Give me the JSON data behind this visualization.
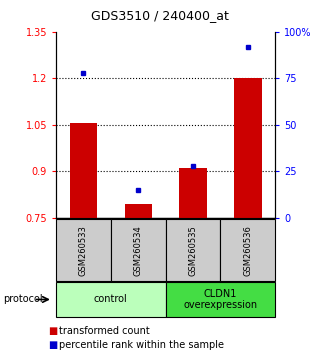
{
  "title": "GDS3510 / 240400_at",
  "samples": [
    "GSM260533",
    "GSM260534",
    "GSM260535",
    "GSM260536"
  ],
  "bar_values": [
    1.055,
    0.795,
    0.91,
    1.2
  ],
  "percentile_values": [
    78,
    15,
    28,
    92
  ],
  "ylim_left": [
    0.75,
    1.35
  ],
  "ylim_right": [
    0,
    100
  ],
  "yticks_left": [
    0.75,
    0.9,
    1.05,
    1.2,
    1.35
  ],
  "ytick_labels_left": [
    "0.75",
    "0.9",
    "1.05",
    "1.2",
    "1.35"
  ],
  "yticks_right": [
    0,
    25,
    50,
    75,
    100
  ],
  "ytick_labels_right": [
    "0",
    "25",
    "50",
    "75",
    "100%"
  ],
  "dotted_lines": [
    0.9,
    1.05,
    1.2
  ],
  "bar_color": "#cc0000",
  "dot_color": "#0000cc",
  "bar_width": 0.5,
  "groups": [
    {
      "label": "control",
      "indices": [
        0,
        1
      ],
      "color": "#bbffbb"
    },
    {
      "label": "CLDN1\noverexpression",
      "indices": [
        2,
        3
      ],
      "color": "#44dd44"
    }
  ],
  "protocol_label": "protocol",
  "legend_bar_label": "transformed count",
  "legend_dot_label": "percentile rank within the sample",
  "bg_color": "#ffffff",
  "sample_box_color": "#cccccc",
  "grid_color": "#555555"
}
